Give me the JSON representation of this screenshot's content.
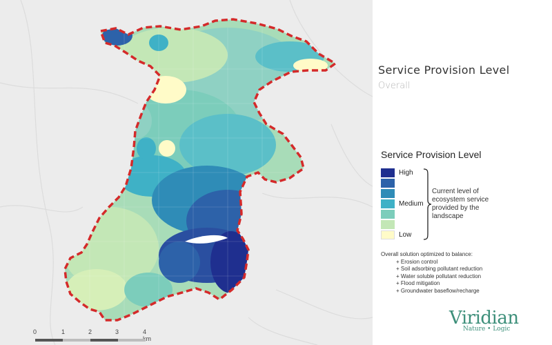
{
  "map": {
    "title": "Service Provision Level",
    "subtitle": "Overall"
  },
  "legend": {
    "title": "Service Provision Level",
    "classes": [
      {
        "label": "High",
        "color": "#1f2f8f"
      },
      {
        "label": "",
        "color": "#2d62a9"
      },
      {
        "label": "",
        "color": "#2f8cb7"
      },
      {
        "label": "Medium",
        "color": "#3fb1c6"
      },
      {
        "label": "",
        "color": "#7ccdbb"
      },
      {
        "label": "",
        "color": "#c3e7b6"
      },
      {
        "label": "Low",
        "color": "#fffbc8"
      }
    ],
    "description": "Current level of ecosystem service provided by the landscape"
  },
  "solution": {
    "heading": "Overall solution optimized to balance:",
    "items": [
      "+ Erosion control",
      "+ Soil adsorbing pollutant reduction",
      "+ Water soluble pollutant reduction",
      "+ Flood mitigation",
      "+ Groundwater baseflow/recharge"
    ]
  },
  "scale": {
    "ticks": [
      "0",
      "1",
      "2",
      "3",
      "4 km"
    ],
    "colors": [
      "#555555",
      "#bdbdbd"
    ]
  },
  "brand": {
    "name": "Viridian",
    "tagline": "Nature  •  Logic",
    "color": "#3d8f7a"
  },
  "boundary": {
    "color": "#d42a2a"
  }
}
